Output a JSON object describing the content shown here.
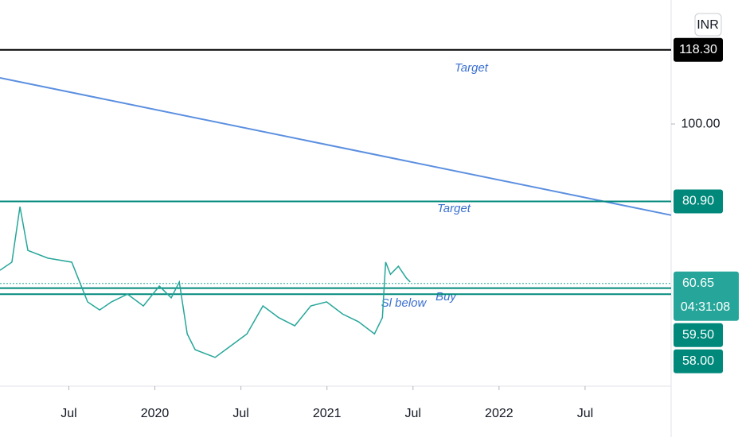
{
  "chart_data": {
    "type": "line",
    "currency": "INR",
    "x": [
      2019.1,
      2019.169,
      2019.216,
      2019.262,
      2019.378,
      2019.517,
      2019.563,
      2019.609,
      2019.679,
      2019.748,
      2019.841,
      2019.933,
      2020.026,
      2020.095,
      2020.142,
      2020.188,
      2020.234,
      2020.35,
      2020.443,
      2020.535,
      2020.628,
      2020.72,
      2020.813,
      2020.906,
      2020.998,
      2021.091,
      2021.183,
      2021.276,
      2021.322,
      2021.341,
      2021.369,
      2021.415,
      2021.461,
      2021.484
    ],
    "series": [
      {
        "color": "#26a69a",
        "values": [
          63.9,
          65.9,
          79.6,
          68.8,
          66.9,
          65.9,
          61.0,
          56.1,
          54.1,
          56.1,
          58.0,
          55.1,
          60.0,
          57.1,
          61.0,
          48.2,
          44.3,
          42.4,
          45.3,
          48.2,
          55.1,
          52.2,
          50.2,
          55.1,
          56.1,
          53.1,
          51.2,
          48.2,
          52.2,
          65.9,
          62.9,
          64.9,
          62.0,
          61.0
        ]
      }
    ],
    "xlim": [
      2019.1,
      2023.0
    ],
    "xticks": [
      {
        "value": 2019.5,
        "label": "Jul"
      },
      {
        "value": 2020,
        "label": "2020"
      },
      {
        "value": 2020.5,
        "label": "Jul"
      },
      {
        "value": 2021,
        "label": "2021"
      },
      {
        "value": 2021.5,
        "label": "Jul"
      },
      {
        "value": 2022,
        "label": "2022"
      },
      {
        "value": 2022.5,
        "label": "Jul"
      }
    ],
    "ylim": [
      35.5,
      130.6
    ],
    "yticks": [
      {
        "value": 100,
        "label": "100.00"
      }
    ],
    "hlines": [
      {
        "value": 118.3,
        "label": "118.30",
        "color": "#000000"
      },
      {
        "value": 80.9,
        "label": "80.90",
        "color": "#00897b"
      },
      {
        "value": 60.65,
        "label": "60.65",
        "countdown": "04:31:08",
        "color": "#26a69a",
        "dotted": true
      },
      {
        "value": 59.5,
        "label": "59.50",
        "color": "#00897b"
      },
      {
        "value": 58.0,
        "label": "58.00",
        "color": "#00897b"
      }
    ],
    "trendline": {
      "x": [
        2019.1,
        2023.0
      ],
      "values": [
        111.4,
        77.5
      ],
      "color": "#5b8fe0"
    },
    "annotations": [
      "Target",
      "Target",
      "Sl below",
      "Buy"
    ]
  }
}
